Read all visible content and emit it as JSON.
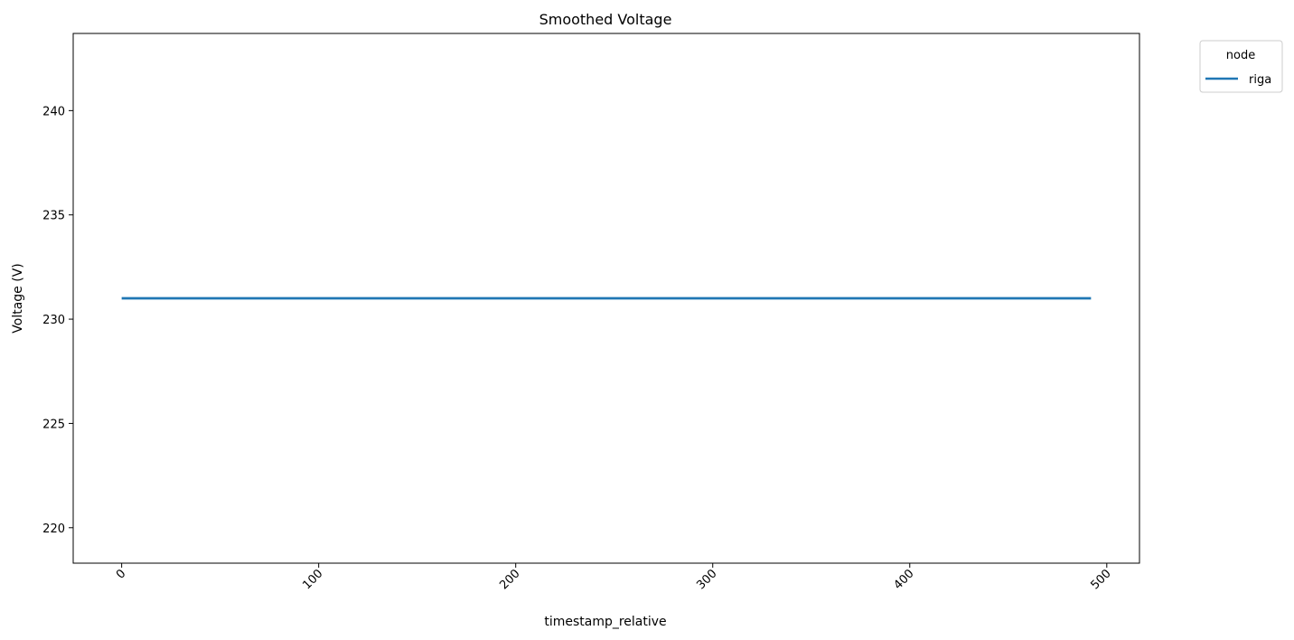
{
  "chart_data": {
    "type": "line",
    "title": "Smoothed Voltage",
    "xlabel": "timestamp_relative",
    "ylabel": "Voltage (V)",
    "xlim": [
      -24.6,
      516.6
    ],
    "ylim": [
      218.3,
      243.7
    ],
    "xticks": [
      0,
      100,
      200,
      300,
      400,
      500
    ],
    "yticks": [
      220,
      225,
      230,
      235,
      240
    ],
    "grid": false,
    "legend": {
      "title": "node",
      "placement": "outside-top-right"
    },
    "series": [
      {
        "name": "riga",
        "color": "#1f77b4",
        "x": [
          0,
          492
        ],
        "y": [
          231.0,
          231.0
        ]
      }
    ]
  }
}
